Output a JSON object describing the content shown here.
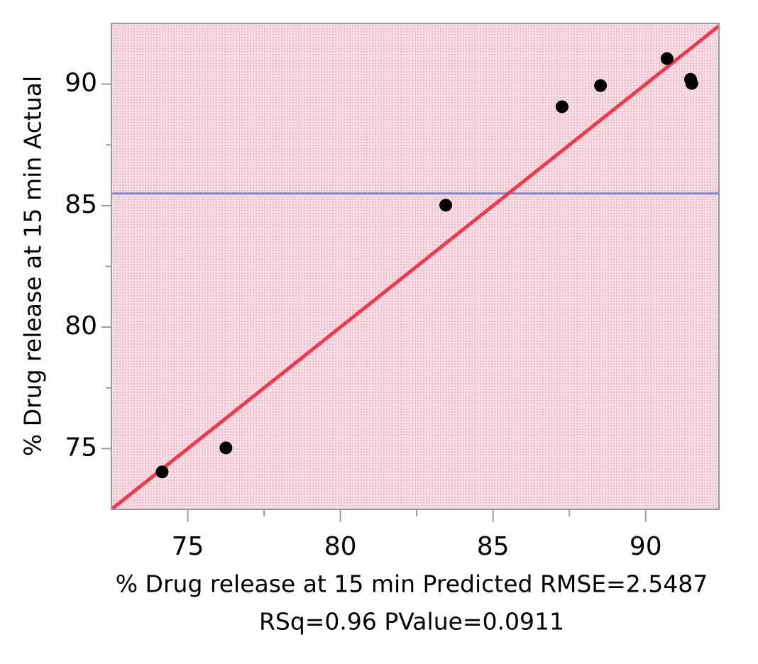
{
  "chart_data": {
    "type": "scatter",
    "xlabel": "% Drug release at 15 min Predicted RMSE=2.5487",
    "caption": "RSq=0.96 PValue=0.0911",
    "ylabel": "% Drug release at 15 min Actual",
    "x": [
      74.16,
      76.25,
      83.45,
      87.26,
      88.52,
      90.7,
      91.47,
      91.51
    ],
    "series": [
      {
        "color": "#000000",
        "values": [
          74.04,
          75.03,
          85.02,
          89.07,
          89.94,
          91.05,
          90.2,
          90.03
        ]
      }
    ],
    "xlim": [
      72.5,
      92.4
    ],
    "ylim": [
      72.5,
      92.5
    ],
    "xticks": [
      75,
      80,
      85,
      90
    ],
    "yticks": [
      75,
      80,
      85,
      90
    ],
    "xminorticks": [
      77.5,
      82.5,
      87.5
    ],
    "yminorticks": [
      77.5,
      82.5,
      87.5
    ],
    "fit_line": {
      "intercept": 0,
      "slope": 1,
      "color": "#f0384f"
    },
    "mean_line": {
      "value": 85.5,
      "color": "#7b86dd"
    },
    "background": "#f5dde3"
  }
}
